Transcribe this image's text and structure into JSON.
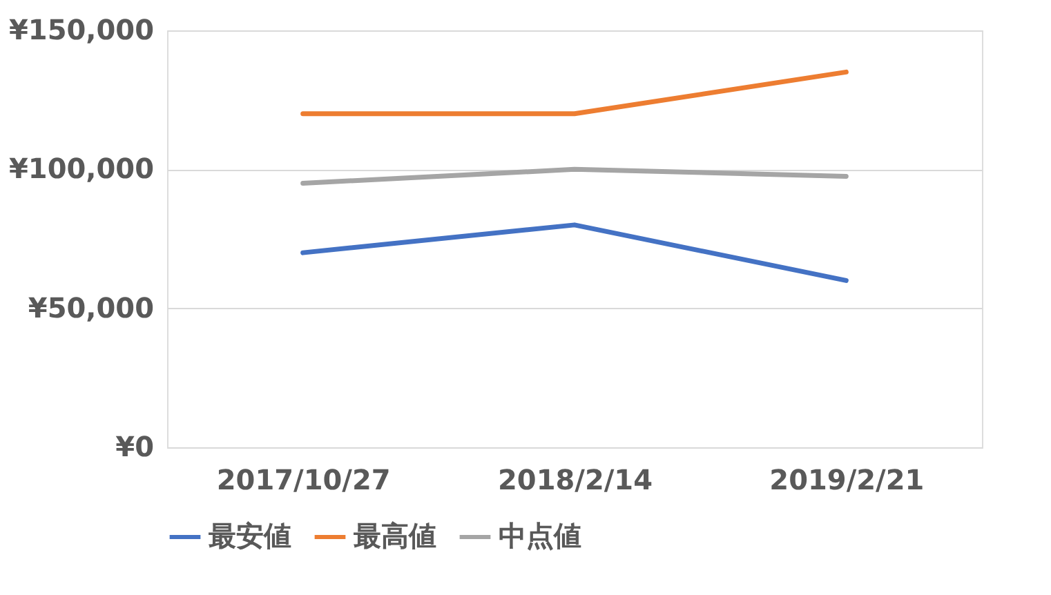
{
  "chart_data": {
    "type": "line",
    "categories": [
      "2017/10/27",
      "2018/2/14",
      "2019/2/21"
    ],
    "series": [
      {
        "name": "最安値",
        "color": "#4472c4",
        "values": [
          70000,
          80000,
          60000
        ]
      },
      {
        "name": "最高値",
        "color": "#ed7d31",
        "values": [
          120000,
          120000,
          135000
        ]
      },
      {
        "name": "中点値",
        "color": "#a5a5a5",
        "values": [
          95000,
          100000,
          97500
        ]
      }
    ],
    "ylim": [
      0,
      150000
    ],
    "yticks": [
      {
        "value": 0,
        "label": "¥0"
      },
      {
        "value": 50000,
        "label": "¥50,000"
      },
      {
        "value": 100000,
        "label": "¥100,000"
      },
      {
        "value": 150000,
        "label": "¥150,000"
      }
    ],
    "grid": "y",
    "legend": "bottom",
    "marker": "none",
    "line_style": "solid"
  }
}
